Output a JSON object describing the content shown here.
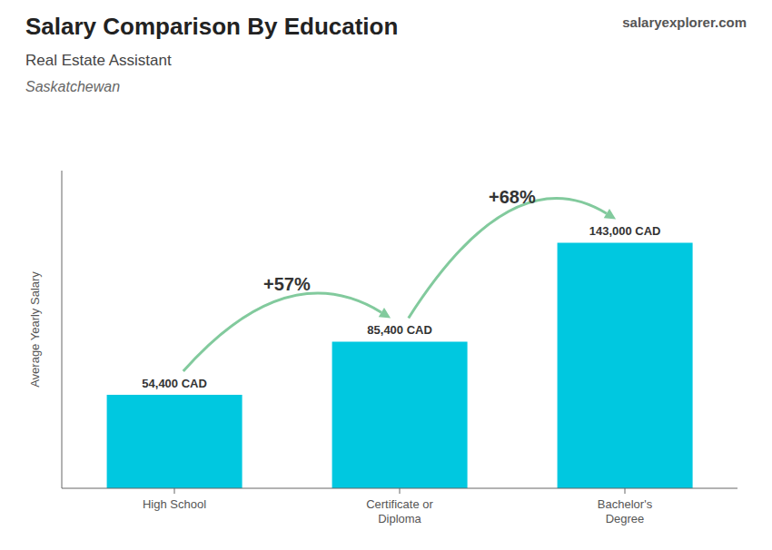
{
  "chart_data": {
    "type": "bar",
    "title": "Salary Comparison By Education",
    "subtitle": "Real Estate Assistant",
    "categories": [
      "High School",
      "Certificate or\nDiploma",
      "Bachelor's\nDegree"
    ],
    "values": [
      54400,
      85400,
      143000
    ],
    "value_labels": [
      "54,400 CAD",
      "85,400 CAD",
      "143,000 CAD"
    ],
    "data_labels": true,
    "color": "#00c8e0",
    "ylim": [
      0,
      185000
    ],
    "ylabel": "Average Yearly Salary",
    "tick_labels": "x",
    "grid": false,
    "annotations": [
      {
        "text": "Saskatchewan"
      },
      {
        "text": "salaryexplorer.com"
      },
      {
        "text": "+57%",
        "from": "High School",
        "to": "Certificate or\nDiploma"
      },
      {
        "text": "+68%",
        "from": "Certificate or\nDiploma",
        "to": "Bachelor's\nDegree"
      }
    ]
  }
}
